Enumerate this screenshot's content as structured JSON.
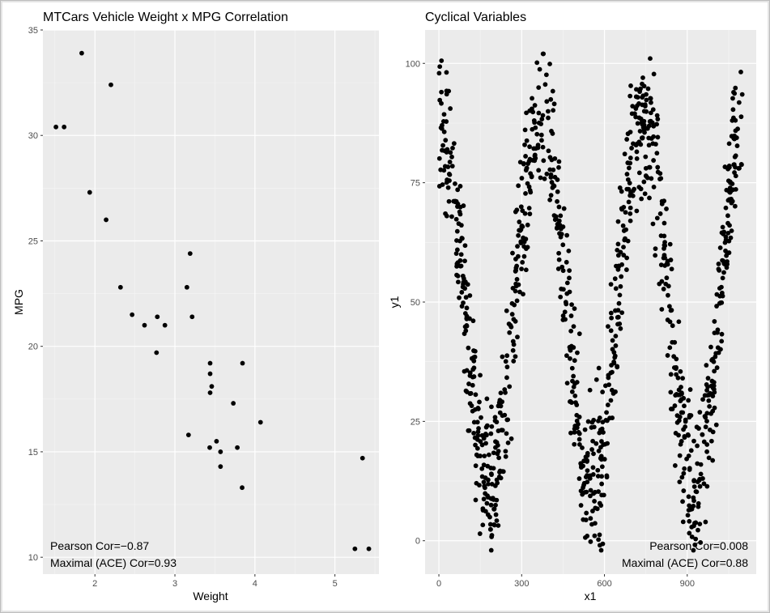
{
  "colors": {
    "panel_background": "#ebebeb",
    "grid_major": "#ffffff",
    "point": "#000000",
    "tick_text": "#4d4d4d"
  },
  "chart_data": [
    {
      "type": "scatter",
      "title": "MTCars Vehicle Weight x MPG Correlation",
      "xlabel": "Weight",
      "ylabel": "MPG",
      "xlim": [
        1.35,
        5.55
      ],
      "ylim": [
        9.2,
        35.0
      ],
      "x_ticks": [
        2,
        3,
        4,
        5
      ],
      "y_ticks": [
        10,
        15,
        20,
        25,
        30,
        35
      ],
      "grid": true,
      "annotations": {
        "pearson": "Pearson Cor=−0.87",
        "maximal": "Maximal (ACE) Cor=0.93"
      },
      "x": [
        2.62,
        2.875,
        2.32,
        3.215,
        3.44,
        3.46,
        3.57,
        3.19,
        3.15,
        3.44,
        3.44,
        4.07,
        3.73,
        3.78,
        5.25,
        5.424,
        5.345,
        2.2,
        1.615,
        1.835,
        2.465,
        3.52,
        3.435,
        3.84,
        3.845,
        1.935,
        2.14,
        1.513,
        3.17,
        2.77,
        3.57,
        2.78
      ],
      "y": [
        21.0,
        21.0,
        22.8,
        21.4,
        18.7,
        18.1,
        14.3,
        24.4,
        22.8,
        19.2,
        17.8,
        16.4,
        17.3,
        15.2,
        10.4,
        10.4,
        14.7,
        32.4,
        30.4,
        33.9,
        21.5,
        15.5,
        15.2,
        13.3,
        19.2,
        27.3,
        26.0,
        30.4,
        15.8,
        19.7,
        15.0,
        21.4
      ]
    },
    {
      "type": "scatter",
      "title": "Cyclical Variables",
      "xlabel": "x1",
      "ylabel": "y1",
      "xlim": [
        -50,
        1150
      ],
      "ylim": [
        -7,
        107
      ],
      "x_ticks": [
        0,
        300,
        600,
        900
      ],
      "y_ticks": [
        0,
        25,
        50,
        75,
        100
      ],
      "grid": true,
      "annotations": {
        "pearson": "Pearson Cor=0.008",
        "maximal": "Maximal (ACE) Cor=0.88"
      },
      "n_points": 1100,
      "x_range": [
        0,
        1100
      ],
      "underlying_relation": "y1 ≈ 50 + 38·cos(2π·x1/370) + noise(±12)"
    }
  ]
}
